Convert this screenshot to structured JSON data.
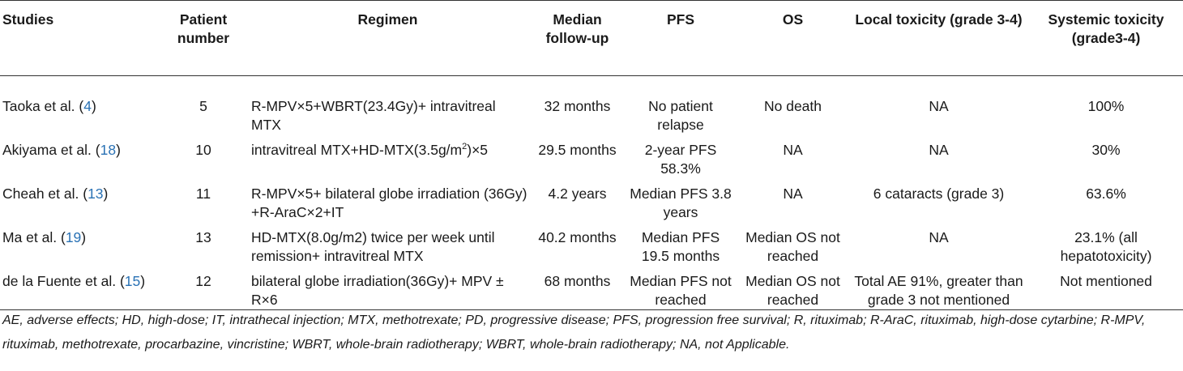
{
  "headers": {
    "studies": "Studies",
    "patients": "Patient number",
    "regimen": "Regimen",
    "followup": "Median follow-up",
    "pfs": "PFS",
    "os": "OS",
    "local_tox": "Local toxicity (grade 3-4)",
    "systemic_tox": "Systemic toxicity (grade3-4)"
  },
  "rows": [
    {
      "author": "Taoka et al. (",
      "ref": "4",
      "author_end": ")",
      "patients": "5",
      "regimen": "R-MPV×5+WBRT(23.4Gy)+ intravitreal MTX",
      "followup": "32 months",
      "pfs": "No patient relapse",
      "os": "No death",
      "local_tox": "NA",
      "systemic_tox": "100%"
    },
    {
      "author": "Akiyama et al. (",
      "ref": "18",
      "author_end": ")",
      "patients": "10",
      "regimen_pre": "intravitreal MTX+HD-MTX(3.5g/m",
      "regimen_sup": "2",
      "regimen_post": ")×5",
      "followup": "29.5 months",
      "pfs": "2-year PFS 58.3%",
      "os": "NA",
      "local_tox": "NA",
      "systemic_tox": "30%"
    },
    {
      "author": "Cheah et al. (",
      "ref": "13",
      "author_end": ")",
      "patients": "11",
      "regimen": "R-MPV×5+ bilateral globe irradiation (36Gy) +R-AraC×2+IT",
      "followup": "4.2 years",
      "pfs": "Median PFS 3.8 years",
      "os": "NA",
      "local_tox": "6 cataracts (grade 3)",
      "systemic_tox": "63.6%"
    },
    {
      "author": "Ma et al. (",
      "ref": "19",
      "author_end": ")",
      "patients": "13",
      "regimen": "HD-MTX(8.0g/m2) twice per week until remission+ intravitreal MTX",
      "followup": "40.2 months",
      "pfs": "Median PFS 19.5 months",
      "os": "Median OS not reached",
      "local_tox": "NA",
      "systemic_tox": "23.1% (all hepatotoxicity)"
    },
    {
      "author": "de la Fuente et al. (",
      "ref": "15",
      "author_end": ")",
      "patients": "12",
      "regimen": "bilateral globe irradiation(36Gy)+ MPV ± R×6",
      "followup": "68 months",
      "pfs": "Median PFS not reached",
      "os": "Median OS not reached",
      "local_tox": "Total AE 91%, greater than grade 3 not mentioned",
      "systemic_tox": "Not mentioned"
    }
  ],
  "footnote": "AE, adverse effects; HD, high-dose; IT, intrathecal injection; MTX, methotrexate; PD, progressive disease; PFS, progression free survival; R, rituximab; R-AraC, rituximab, high-dose cytarbine; R-MPV, rituximab, methotrexate, procarbazine, vincristine; WBRT, whole-brain radiotherapy; WBRT, whole-brain radiotherapy; NA, not Applicable."
}
